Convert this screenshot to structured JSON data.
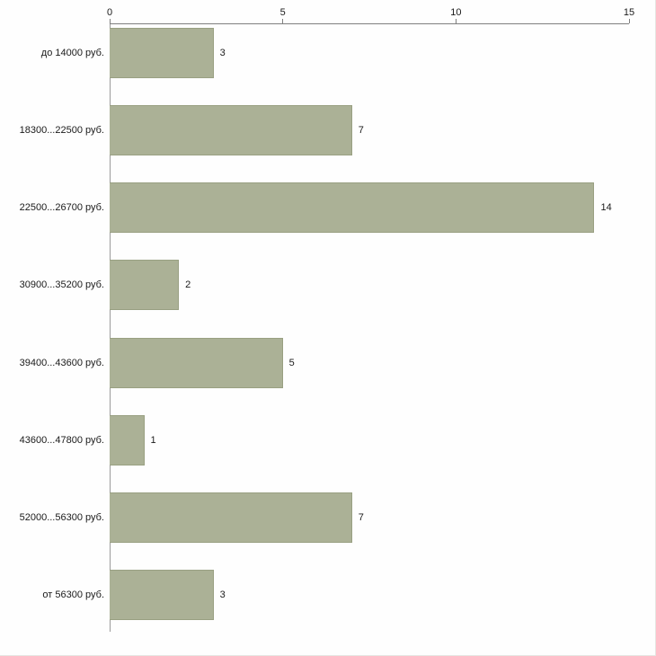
{
  "chart_data": {
    "type": "bar",
    "orientation": "horizontal",
    "title": "",
    "xlabel": "",
    "ylabel": "",
    "categories": [
      "до 14000 руб.",
      "18300...22500 руб.",
      "22500...26700 руб.",
      "30900...35200 руб.",
      "39400...43600 руб.",
      "43600...47800 руб.",
      "52000...56300 руб.",
      "от 56300 руб."
    ],
    "values": [
      3,
      7,
      14,
      2,
      5,
      1,
      7,
      3
    ],
    "xlim": [
      0,
      15
    ],
    "xticks": [
      0,
      5,
      10,
      15
    ],
    "grid": false,
    "legend": "none",
    "bar_color": "#abb196",
    "bar_border_color": "#99a082",
    "axis_color": "#7f7f7f"
  }
}
